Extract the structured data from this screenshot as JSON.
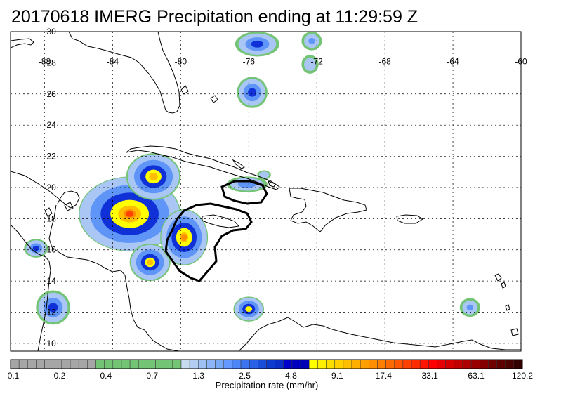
{
  "title": "20170618 IMERG Precipitation ending at 11:29:59 Z",
  "map": {
    "lon_range": [
      -90,
      -60
    ],
    "lat_range": [
      9.5,
      30
    ],
    "lon_ticks": [
      -88,
      -84,
      -80,
      -76,
      -72,
      -68,
      -64,
      -60
    ],
    "lat_ticks": [
      10,
      12,
      14,
      16,
      18,
      20,
      22,
      24,
      26,
      28,
      30
    ],
    "lon_tick_labels": [
      "-88",
      "-84",
      "-80",
      "-76",
      "-72",
      "-68",
      "-64",
      "-60"
    ],
    "lat_tick_labels": [
      "10",
      "12",
      "14",
      "16",
      "18",
      "20",
      "22",
      "24",
      "26",
      "28",
      "30"
    ],
    "grid": true,
    "precip_cells": [
      {
        "lon": -83.0,
        "lat": 18.3,
        "rx": 3.0,
        "ry": 2.4,
        "peak_mm_hr": 20
      },
      {
        "lon": -81.6,
        "lat": 20.7,
        "rx": 1.6,
        "ry": 1.5,
        "peak_mm_hr": 8
      },
      {
        "lon": -81.8,
        "lat": 15.2,
        "rx": 1.2,
        "ry": 1.2,
        "peak_mm_hr": 6
      },
      {
        "lon": -79.8,
        "lat": 16.8,
        "rx": 1.4,
        "ry": 1.8,
        "peak_mm_hr": 12
      },
      {
        "lon": -75.8,
        "lat": 26.1,
        "rx": 0.9,
        "ry": 1.0,
        "peak_mm_hr": 2.5
      },
      {
        "lon": -75.5,
        "lat": 29.2,
        "rx": 1.3,
        "ry": 0.8,
        "peak_mm_hr": 2.2
      },
      {
        "lon": -76.0,
        "lat": 12.2,
        "rx": 0.9,
        "ry": 0.8,
        "peak_mm_hr": 5
      },
      {
        "lon": -87.5,
        "lat": 12.3,
        "rx": 1.0,
        "ry": 1.1,
        "peak_mm_hr": 2.5
      },
      {
        "lon": -88.5,
        "lat": 16.1,
        "rx": 0.7,
        "ry": 0.6,
        "peak_mm_hr": 2
      },
      {
        "lon": -76.1,
        "lat": 20.2,
        "rx": 1.2,
        "ry": 0.5,
        "peak_mm_hr": 1.5
      },
      {
        "lon": -72.3,
        "lat": 29.4,
        "rx": 0.6,
        "ry": 0.6,
        "peak_mm_hr": 1
      },
      {
        "lon": -72.4,
        "lat": 27.9,
        "rx": 0.5,
        "ry": 0.6,
        "peak_mm_hr": 0.8
      },
      {
        "lon": -63.0,
        "lat": 12.3,
        "rx": 0.6,
        "ry": 0.6,
        "peak_mm_hr": 1
      },
      {
        "lon": -75.1,
        "lat": 20.8,
        "rx": 0.4,
        "ry": 0.3,
        "peak_mm_hr": 0.9
      }
    ]
  },
  "colorbar": {
    "colors": [
      "#a6a6a6",
      "#a6a6a6",
      "#a6a6a6",
      "#a6a6a6",
      "#a6a6a6",
      "#a6a6a6",
      "#a6a6a6",
      "#a6a6a6",
      "#a6a6a6",
      "#a6a6a6",
      "#74c476",
      "#74c476",
      "#74c476",
      "#74c476",
      "#74c476",
      "#74c476",
      "#74c476",
      "#74c476",
      "#74c476",
      "#74c476",
      "#c6dbef",
      "#b3cdf2",
      "#9fc2f5",
      "#8cb6f7",
      "#78a9f5",
      "#6699ff",
      "#4f86f7",
      "#3b73f0",
      "#2a60e6",
      "#1a4ed9",
      "#0d3bd0",
      "#0a2fc8",
      "#0000cc",
      "#0000c0",
      "#0000b4",
      "#ffff00",
      "#ffef00",
      "#ffdf00",
      "#ffcf00",
      "#ffbf00",
      "#ffaf00",
      "#ff9f00",
      "#ff8f00",
      "#ff7f00",
      "#ff6a00",
      "#ff5500",
      "#ff4000",
      "#ff2b00",
      "#ff1500",
      "#ff0000",
      "#e60000",
      "#d40000",
      "#c00000",
      "#ad0000",
      "#990000",
      "#850000",
      "#700000",
      "#5c0000",
      "#4a0000",
      "#330000"
    ],
    "tick_labels": [
      "0.1",
      "0.2",
      "0.4",
      "0.7",
      "1.3",
      "2.5",
      "4.8",
      "9.1",
      "17.4",
      "33.1",
      "63.1",
      "120.2"
    ],
    "caption": "Precipitation rate (mm/hr)"
  }
}
